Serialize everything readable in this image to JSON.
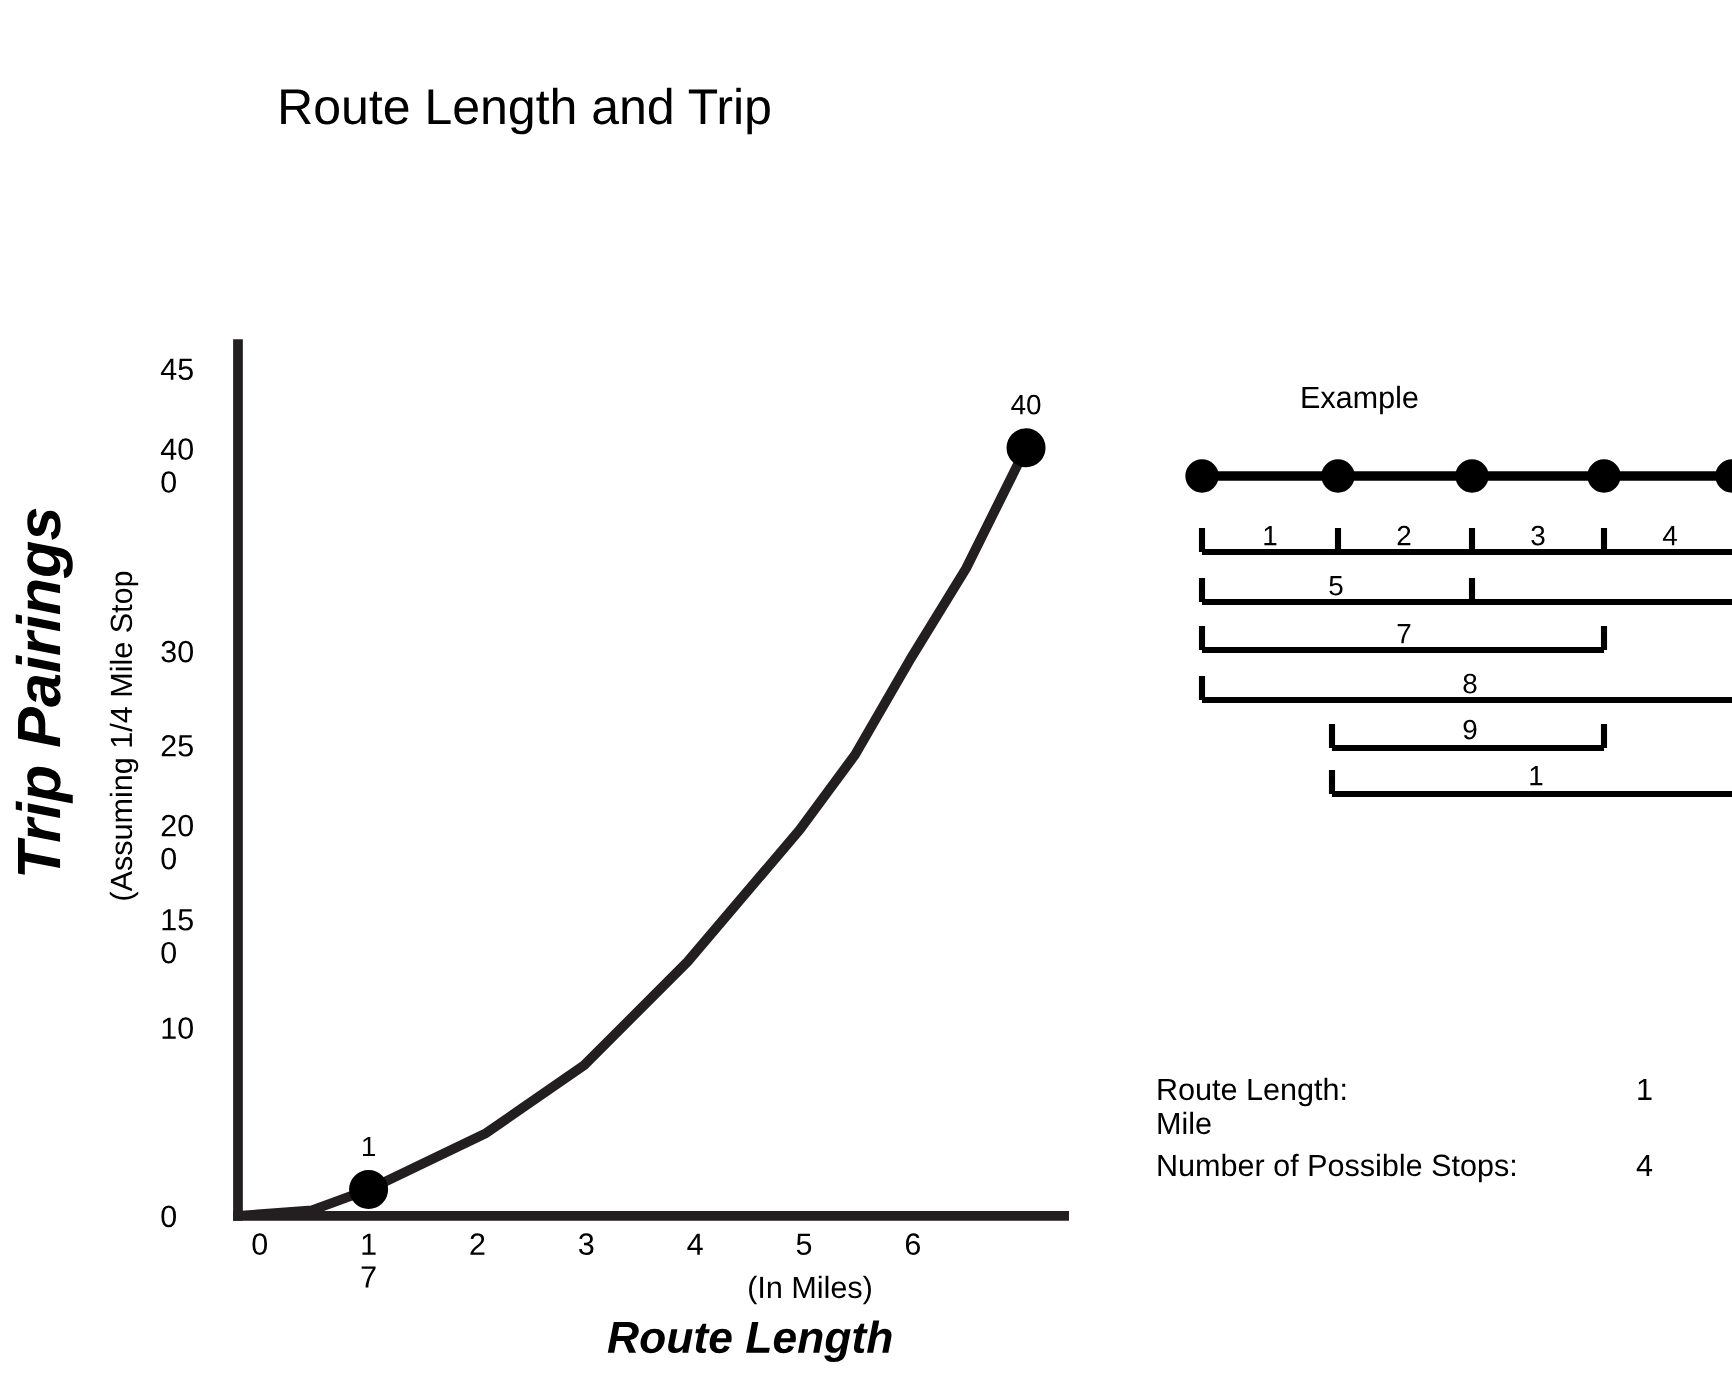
{
  "chart_data": {
    "type": "line",
    "title": "Route Length and Trip",
    "xlabel": "Route Length",
    "ylabel": "Trip Pairings",
    "x": [
      -0.2,
      0.48,
      1,
      2.08,
      2.98,
      3.93,
      4.96,
      5.47,
      5.98,
      6.49,
      7.04
    ],
    "series": [
      {
        "color": "#231f20",
        "marker": "none",
        "values": [
          0,
          0.3,
          1.4,
          4.4,
          8.0,
          13.5,
          20.5,
          24.5,
          29.6,
          34.4,
          40.8
        ]
      },
      {
        "type": "scatter",
        "color": "#000000",
        "marker": "circle",
        "x": [
          1,
          7.04
        ],
        "values": [
          1.4,
          40.8
        ]
      }
    ],
    "xlim": [
      -0.2,
      7.39
    ],
    "xticks": [
      0,
      {
        "value": 1,
        "label": "1\n7"
      },
      2,
      3,
      4,
      5,
      6
    ],
    "ylim": [
      0,
      46.3
    ],
    "yticks": [
      0,
      10,
      {
        "value": 15,
        "label": "15\n0"
      },
      {
        "value": 20,
        "label": "20\n0"
      },
      25,
      30,
      {
        "value": 40,
        "label": "40\n0"
      },
      45
    ],
    "grid": false,
    "legend": false,
    "annotations": [
      {
        "text": "1",
        "x": 1,
        "y": 1.4
      },
      {
        "text": "40",
        "x": 7.04,
        "y": 40.8
      },
      "(In Miles)",
      "(Assuming 1/4 Mile Stop",
      "Example",
      "1",
      "2",
      "3",
      "4",
      "5",
      "7",
      "8",
      "9",
      "1",
      "Route Length:",
      "1",
      "Mile",
      "Number of Possible Stops:",
      "4"
    ]
  }
}
